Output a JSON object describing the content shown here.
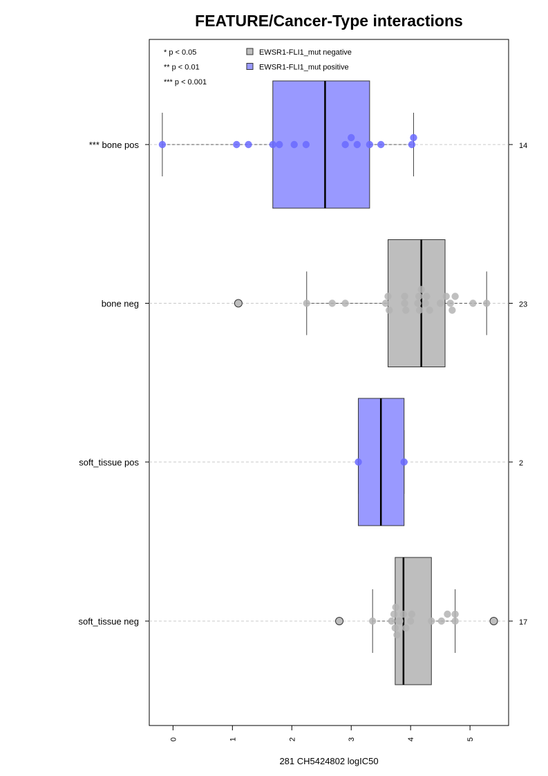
{
  "chart_data": {
    "type": "boxplot",
    "orientation": "horizontal",
    "title": "FEATURE/Cancer-Type interactions",
    "xlabel": "281 CH5424802 logIC50",
    "xlim": [
      -0.4,
      5.65
    ],
    "x_ticks": [
      0,
      1,
      2,
      3,
      4,
      5
    ],
    "x_tick_labels": [
      "0",
      "1",
      "2",
      "3",
      "4",
      "5"
    ],
    "grid": "horizontal dashed lines through each group",
    "colors": {
      "positive": "#9999ff",
      "negative": "#bebebe",
      "positive_point": "#6a6aff",
      "negative_point": "#b4b4b4"
    },
    "significance_legend": [
      "* p < 0.05",
      "** p < 0.01",
      "*** p < 0.001"
    ],
    "legend": {
      "placement": "top",
      "entries": [
        {
          "label": "EWSR1-FLI1_mut negative",
          "color": "#bebebe"
        },
        {
          "label": "EWSR1-FLI1_mut positive",
          "color": "#9999ff"
        }
      ]
    },
    "groups": [
      {
        "label": "*** bone pos",
        "n_label": "14",
        "mutation": "positive",
        "q1": 1.68,
        "median": 2.56,
        "q3": 3.31,
        "whisker_low": -0.18,
        "whisker_high": 4.05,
        "outliers": [],
        "points": [
          -0.18,
          1.07,
          1.27,
          1.68,
          1.79,
          2.04,
          2.24,
          2.9,
          3.0,
          3.1,
          3.31,
          3.5,
          4.02,
          4.05
        ]
      },
      {
        "label": "bone neg",
        "n_label": "23",
        "mutation": "negative",
        "q1": 3.62,
        "median": 4.18,
        "q3": 4.58,
        "whisker_low": 2.25,
        "whisker_high": 5.28,
        "outliers": [
          1.1
        ],
        "points": [
          2.25,
          2.68,
          2.9,
          3.58,
          3.62,
          3.64,
          3.9,
          3.9,
          3.92,
          4.12,
          4.14,
          4.15,
          4.18,
          4.25,
          4.27,
          4.32,
          4.5,
          4.6,
          4.67,
          4.7,
          4.75,
          5.05,
          5.28
        ]
      },
      {
        "label": "soft_tissue pos",
        "n_label": "2",
        "mutation": "positive",
        "q1": 3.12,
        "median": 3.5,
        "q3": 3.89,
        "whisker_low": 3.12,
        "whisker_high": 3.89,
        "outliers": [],
        "points": [
          3.12,
          3.89
        ]
      },
      {
        "label": "soft_tissue neg",
        "n_label": "17",
        "mutation": "negative",
        "q1": 3.74,
        "median": 3.88,
        "q3": 4.35,
        "whisker_low": 3.36,
        "whisker_high": 4.75,
        "outliers": [
          2.8,
          5.4
        ],
        "points": [
          3.36,
          3.68,
          3.72,
          3.74,
          3.75,
          3.77,
          3.8,
          3.82,
          3.88,
          3.92,
          4.0,
          4.02,
          4.35,
          4.52,
          4.62,
          4.75,
          4.75
        ]
      }
    ]
  }
}
